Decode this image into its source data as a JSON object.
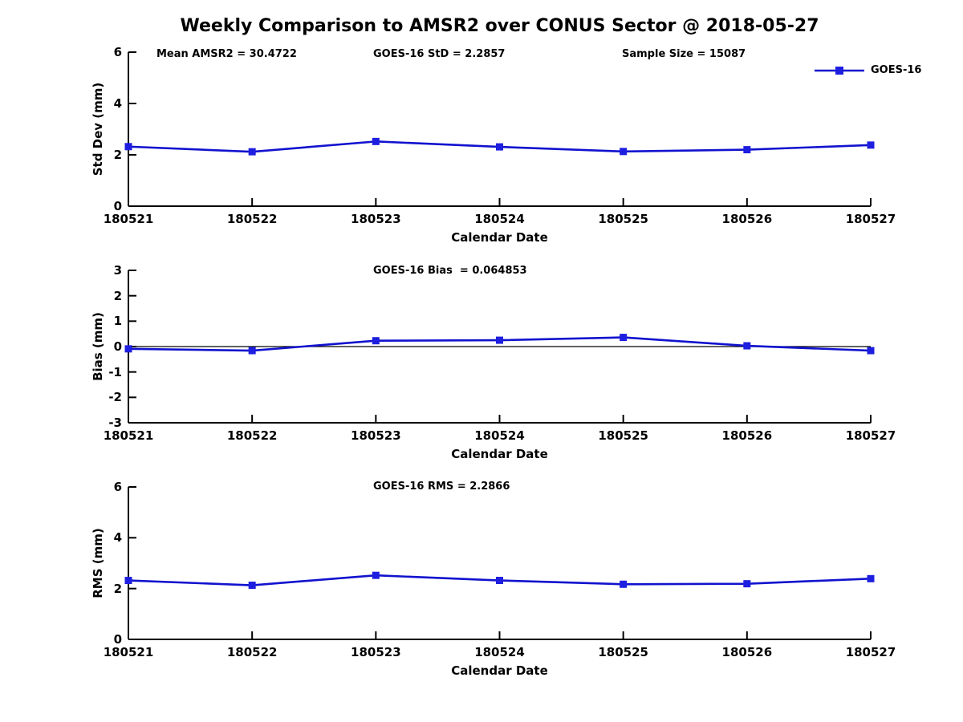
{
  "title": "Weekly Comparison to AMSR2 over CONUS Sector @ 2018-05-27",
  "legend": {
    "label": "GOES-16"
  },
  "colors": {
    "line": "#1212cf",
    "marker": "#1e1ee0",
    "axis": "#000000",
    "zero_line": "#000000",
    "text": "#000000",
    "background": "#ffffff"
  },
  "chart_data": [
    {
      "type": "line",
      "title": "",
      "ylabel": "Std Dev (mm)",
      "xlabel": "Calendar Date",
      "categories": [
        "180521",
        "180522",
        "180523",
        "180524",
        "180525",
        "180526",
        "180527"
      ],
      "series": [
        {
          "name": "GOES-16",
          "values": [
            2.32,
            2.12,
            2.52,
            2.31,
            2.13,
            2.2,
            2.38
          ]
        }
      ],
      "ylim": [
        0,
        6
      ],
      "yticks": [
        0,
        2,
        4,
        6
      ],
      "grid": false,
      "zero_line": false,
      "legend_position": "top-right",
      "annotations": [
        {
          "text": "Mean AMSR2 = 30.4722"
        },
        {
          "text": "GOES-16 StD = 2.2857"
        },
        {
          "text": "Sample Size = 15087"
        }
      ]
    },
    {
      "type": "line",
      "title": "",
      "ylabel": "Bias (mm)",
      "xlabel": "Calendar Date",
      "categories": [
        "180521",
        "180522",
        "180523",
        "180524",
        "180525",
        "180526",
        "180527"
      ],
      "series": [
        {
          "name": "GOES-16",
          "values": [
            -0.09,
            -0.16,
            0.23,
            0.25,
            0.36,
            0.03,
            -0.16
          ]
        }
      ],
      "ylim": [
        -3,
        3
      ],
      "yticks": [
        -3,
        -2,
        -1,
        0,
        1,
        2,
        3
      ],
      "grid": false,
      "zero_line": true,
      "annotations": [
        {
          "text": "GOES-16 Bias  = 0.064853"
        }
      ]
    },
    {
      "type": "line",
      "title": "",
      "ylabel": "RMS (mm)",
      "xlabel": "Calendar Date",
      "categories": [
        "180521",
        "180522",
        "180523",
        "180524",
        "180525",
        "180526",
        "180527"
      ],
      "series": [
        {
          "name": "GOES-16",
          "values": [
            2.32,
            2.13,
            2.52,
            2.32,
            2.17,
            2.19,
            2.39
          ]
        }
      ],
      "ylim": [
        0,
        6
      ],
      "yticks": [
        0,
        2,
        4,
        6
      ],
      "grid": false,
      "zero_line": false,
      "annotations": [
        {
          "text": "GOES-16 RMS = 2.2866"
        }
      ]
    }
  ]
}
